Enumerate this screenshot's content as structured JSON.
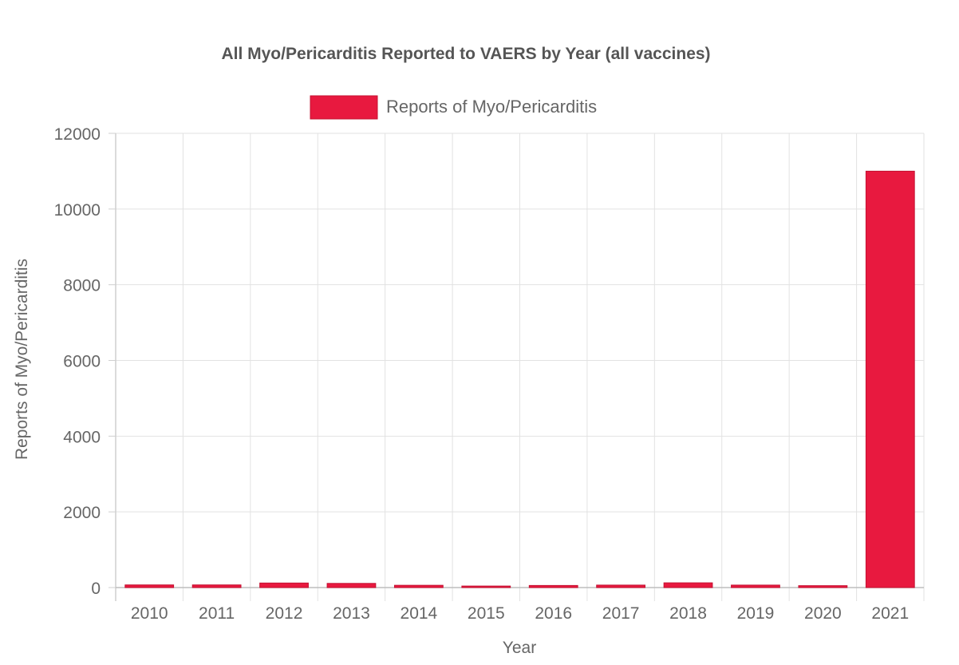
{
  "chart_data": {
    "type": "bar",
    "title": "All Myo/Pericarditis Reported to VAERS by Year (all vaccines)",
    "xlabel": "Year",
    "ylabel": "Reports of Myo/Pericarditis",
    "categories": [
      "2010",
      "2011",
      "2012",
      "2013",
      "2014",
      "2015",
      "2016",
      "2017",
      "2018",
      "2019",
      "2020",
      "2021"
    ],
    "series": [
      {
        "name": "Reports of Myo/Pericarditis",
        "values": [
          70,
          70,
          120,
          110,
          60,
          40,
          55,
          65,
          125,
          65,
          50,
          11000
        ],
        "color": "#e8193f"
      }
    ],
    "ylim": [
      0,
      12000
    ],
    "yticks": [
      "0",
      "2000",
      "4000",
      "6000",
      "8000",
      "10000",
      "12000"
    ],
    "grid": true,
    "legend": "top-center"
  }
}
